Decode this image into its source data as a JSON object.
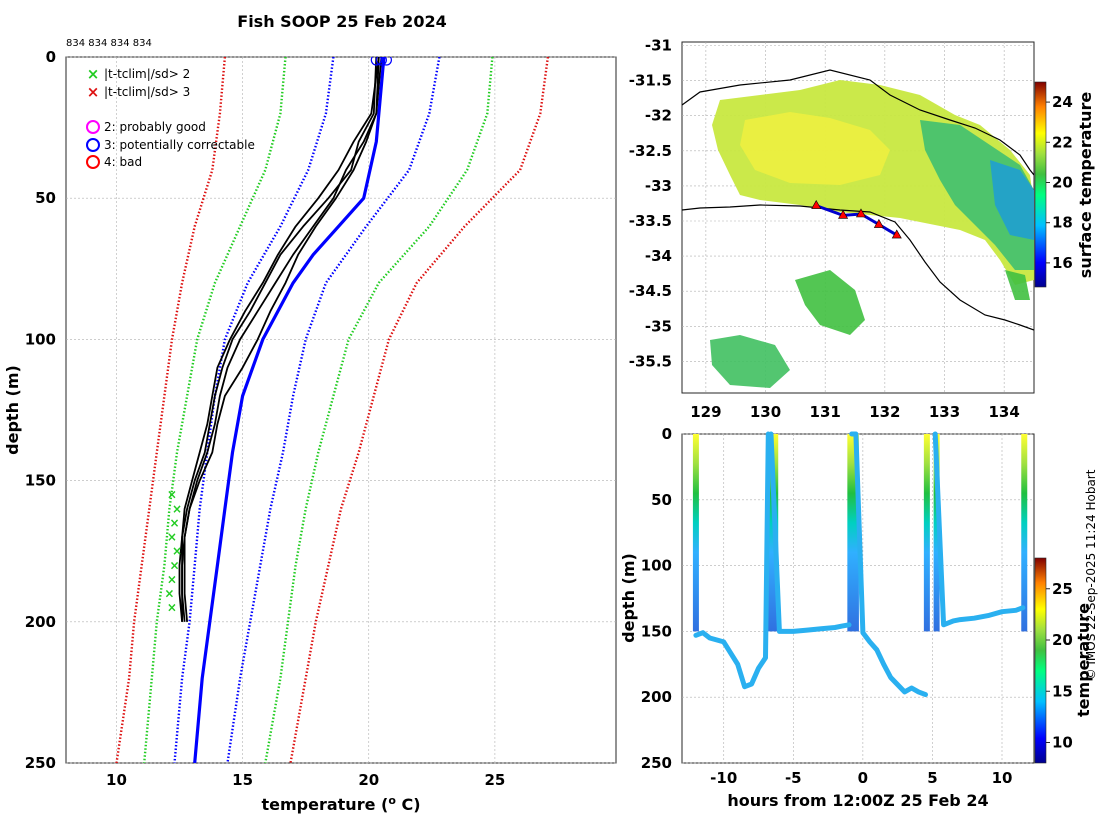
{
  "colors": {
    "good": "#ff00ff",
    "correctable": "#0000ff",
    "bad": "#ff0000",
    "sd2": "#22cc22",
    "sd3": "#dd1111",
    "profile": "#000000",
    "grid": "#b0b0b0",
    "coast": "#000000"
  },
  "left": {
    "title": "Fish SOOP 25 Feb 2024",
    "ids": "834 834 834 834",
    "xlabel": "temperature (",
    "xlabel_sup": "o",
    "xlabel_tail": " C)",
    "ylabel": "depth (m)",
    "legend": {
      "x2": "|t-tclim|/sd> 2",
      "x3": "|t-tclim|/sd> 3",
      "q2": "2: probably good",
      "q3": "3: potentially correctable",
      "q4": "4: bad"
    }
  },
  "map": {
    "ylabel_cb": "surface temperature",
    "cb_ticks": [
      "24",
      "22",
      "20",
      "18",
      "16"
    ]
  },
  "bottom": {
    "xlabel": "hours from 12:00Z 25 Feb 24",
    "ylabel": "depth (m)",
    "cb_label": "temperature",
    "cb_ticks": [
      "25",
      "20",
      "15",
      "10"
    ]
  },
  "credit": "© IMOS 22-Sep-2025 11:24 Hobart",
  "chart_data": [
    {
      "type": "line",
      "title": "Fish SOOP 25 Feb 2024",
      "xlabel": "temperature (o C)",
      "ylabel": "depth (m)",
      "xlim": [
        8,
        29.8
      ],
      "ylim": [
        250,
        0
      ],
      "xticks": [
        10,
        15,
        20,
        25
      ],
      "yticks": [
        0,
        50,
        100,
        150,
        200,
        250
      ],
      "series": [
        {
          "name": "clim -3sd",
          "style": "dotted-red",
          "depth": [
            0,
            20,
            40,
            60,
            80,
            100,
            120,
            140,
            160,
            180,
            200,
            220,
            250
          ],
          "temp": [
            14.3,
            14.1,
            13.8,
            13.1,
            12.6,
            12.2,
            11.9,
            11.6,
            11.3,
            11.0,
            10.7,
            10.5,
            10.0
          ]
        },
        {
          "name": "clim -2sd",
          "style": "dotted-green",
          "depth": [
            0,
            20,
            40,
            60,
            80,
            100,
            120,
            140,
            160,
            180,
            200,
            220,
            250
          ],
          "temp": [
            16.7,
            16.5,
            15.9,
            14.9,
            13.9,
            13.2,
            12.8,
            12.4,
            12.1,
            11.9,
            11.6,
            11.4,
            11.1
          ]
        },
        {
          "name": "clim -1sd",
          "style": "dotted-blue",
          "depth": [
            0,
            20,
            40,
            60,
            80,
            100,
            120,
            140,
            160,
            180,
            200,
            220,
            250
          ],
          "temp": [
            18.6,
            18.3,
            17.6,
            16.5,
            15.2,
            14.3,
            13.9,
            13.6,
            13.3,
            13.1,
            12.9,
            12.6,
            12.3
          ]
        },
        {
          "name": "clim +1sd",
          "style": "dotted-blue",
          "depth": [
            0,
            20,
            40,
            60,
            80,
            100,
            120,
            140,
            160,
            180,
            200,
            220,
            250
          ],
          "temp": [
            22.8,
            22.4,
            21.6,
            19.9,
            18.3,
            17.5,
            17.0,
            16.6,
            16.1,
            15.7,
            15.3,
            14.9,
            14.4
          ]
        },
        {
          "name": "clim +2sd",
          "style": "dotted-green",
          "depth": [
            0,
            20,
            40,
            60,
            80,
            100,
            120,
            140,
            160,
            180,
            200,
            220,
            250
          ],
          "temp": [
            24.9,
            24.7,
            23.9,
            22.4,
            20.4,
            19.2,
            18.6,
            18.0,
            17.5,
            17.1,
            16.8,
            16.5,
            15.9
          ]
        },
        {
          "name": "clim +3sd",
          "style": "dotted-red",
          "depth": [
            0,
            20,
            40,
            60,
            80,
            100,
            120,
            140,
            160,
            180,
            200,
            220,
            250
          ],
          "temp": [
            27.1,
            26.8,
            26.0,
            23.8,
            21.9,
            20.8,
            20.2,
            19.6,
            18.9,
            18.4,
            17.9,
            17.5,
            16.9
          ]
        },
        {
          "name": "climatology mean",
          "style": "solid-blue",
          "depth": [
            0,
            10,
            30,
            50,
            60,
            70,
            80,
            90,
            100,
            120,
            140,
            160,
            180,
            200,
            220,
            250
          ],
          "temp": [
            20.6,
            20.5,
            20.3,
            19.8,
            18.8,
            17.8,
            17.0,
            16.4,
            15.8,
            15.0,
            14.6,
            14.3,
            14.0,
            13.7,
            13.4,
            13.1
          ]
        },
        {
          "name": "profile",
          "style": "solid-black",
          "depth": [
            0,
            20,
            30,
            40,
            50,
            60,
            70,
            80,
            90,
            100,
            110,
            120,
            130,
            140,
            150,
            160,
            170,
            180,
            190,
            200
          ],
          "temp": [
            20.4,
            20.3,
            19.8,
            19.1,
            18.6,
            17.8,
            17.0,
            16.3,
            15.6,
            14.9,
            14.4,
            14.1,
            13.9,
            13.6,
            13.2,
            12.9,
            12.7,
            12.7,
            12.7,
            12.8
          ]
        },
        {
          "name": "profile",
          "style": "solid-black",
          "depth": [
            0,
            20,
            30,
            40,
            50,
            60,
            70,
            80,
            90,
            100,
            110,
            120,
            130,
            140,
            150,
            160,
            170,
            180,
            190,
            200
          ],
          "temp": [
            20.3,
            20.2,
            19.6,
            19.3,
            18.4,
            17.4,
            16.5,
            15.9,
            15.3,
            14.6,
            14.2,
            13.9,
            13.7,
            13.5,
            13.1,
            12.8,
            12.6,
            12.6,
            12.6,
            12.7
          ]
        },
        {
          "name": "profile",
          "style": "solid-black",
          "depth": [
            0,
            20,
            30,
            40,
            50,
            60,
            70,
            80,
            90,
            100,
            110,
            120,
            130,
            140,
            150,
            160,
            170,
            180,
            190,
            200
          ],
          "temp": [
            20.5,
            20.3,
            19.9,
            19.4,
            18.7,
            17.9,
            17.2,
            16.7,
            16.1,
            15.6,
            15.0,
            14.3,
            14.0,
            13.8,
            13.3,
            12.9,
            12.7,
            12.6,
            12.6,
            12.6
          ]
        },
        {
          "name": "profile",
          "style": "solid-black",
          "depth": [
            0,
            20,
            30,
            40,
            50,
            60,
            70,
            80,
            90,
            100,
            110,
            120,
            130,
            140,
            150,
            160,
            170,
            180,
            190,
            200
          ],
          "temp": [
            20.4,
            20.1,
            19.4,
            18.8,
            18.0,
            17.1,
            16.4,
            15.8,
            15.1,
            14.5,
            14.0,
            13.8,
            13.6,
            13.3,
            13.0,
            12.7,
            12.6,
            12.5,
            12.5,
            12.6
          ]
        }
      ],
      "flags_sd2": {
        "depth": [
          155,
          160,
          165,
          170,
          175,
          180,
          185,
          190,
          195
        ],
        "temp": [
          12.2,
          12.4,
          12.3,
          12.2,
          12.4,
          12.3,
          12.2,
          12.1,
          12.2
        ]
      },
      "surface_markers": {
        "depth": [
          0,
          0,
          0
        ],
        "temp": [
          20.3,
          20.5,
          20.7
        ]
      }
    },
    {
      "type": "heatmap",
      "xlabel": "",
      "ylabel": "",
      "colorbar_label": "surface temperature",
      "clim": [
        14.8,
        25
      ],
      "xlim": [
        128.6,
        134.5
      ],
      "ylim": [
        -35.95,
        -30.95
      ],
      "xticks": [
        129,
        130,
        131,
        132,
        133,
        134
      ],
      "yticks": [
        -31,
        -31.5,
        -32,
        -32.5,
        -33,
        -33.5,
        -34,
        -34.5,
        -35,
        -35.5
      ],
      "track": {
        "lon": [
          130.85,
          131.3,
          131.6,
          131.9,
          132.2
        ],
        "lat": [
          -33.28,
          -33.42,
          -33.4,
          -33.55,
          -33.7
        ]
      }
    },
    {
      "type": "scatter",
      "xlabel": "hours from 12:00Z 25 Feb 24",
      "ylabel": "depth (m)",
      "colorbar_label": "temperature",
      "clim": [
        8,
        28
      ],
      "xlim": [
        -13,
        12.3
      ],
      "ylim": [
        250,
        0
      ],
      "xticks": [
        -10,
        -5,
        0,
        5,
        10
      ],
      "yticks": [
        0,
        50,
        100,
        150,
        200,
        250
      ],
      "casts": [
        {
          "hours": [
            -12,
            -11.5,
            -11,
            -10,
            -9,
            -8.5,
            -8,
            -7.5,
            -7,
            -6.8
          ],
          "depth": [
            153,
            151,
            155,
            158,
            175,
            192,
            190,
            178,
            170,
            0
          ]
        },
        {
          "hours": [
            -6.6,
            -6,
            -5,
            -4,
            -3,
            -2,
            -1.5,
            -1
          ],
          "depth": [
            0,
            150,
            150,
            149,
            148,
            147,
            146,
            145
          ]
        },
        {
          "hours": [
            -0.8,
            -0.5,
            0,
            0.5,
            1,
            1.5,
            2,
            3,
            3.5,
            4,
            4.5
          ],
          "depth": [
            0,
            0,
            151,
            158,
            164,
            175,
            185,
            196,
            193,
            196,
            198
          ]
        },
        {
          "hours": [
            5.2,
            5.8,
            6.5,
            7,
            8,
            9,
            10,
            11,
            11.5
          ],
          "depth": [
            0,
            145,
            142,
            141,
            140,
            138,
            135,
            134,
            132
          ]
        }
      ]
    }
  ]
}
